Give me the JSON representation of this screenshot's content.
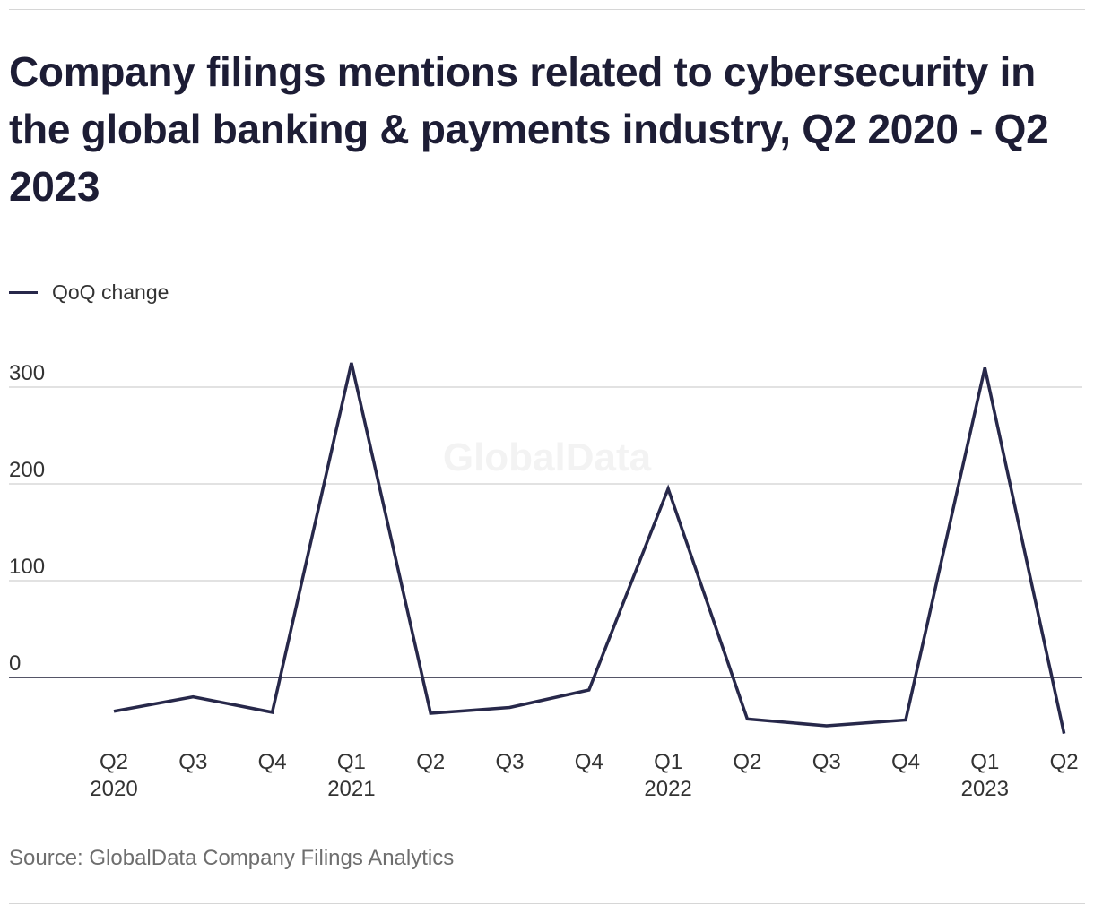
{
  "header": {
    "title": "Company filings mentions related to cybersecurity in the global banking & payments industry, Q2 2020 - Q2 2023"
  },
  "legend": {
    "label": "QoQ change"
  },
  "watermark": "GlobalData",
  "footer": {
    "source": "Source: GlobalData Company Filings Analytics"
  },
  "colors": {
    "line": "#27284a",
    "grid": "#d9d9d9",
    "zero_line": "#1d1d35"
  },
  "chart_data": {
    "type": "line",
    "title": "Company filings mentions related to cybersecurity in the global banking & payments industry, Q2 2020 - Q2 2023",
    "xlabel": "",
    "ylabel": "",
    "ylim": [
      -70,
      330
    ],
    "yticks": [
      0,
      100,
      200,
      300
    ],
    "grid": true,
    "legend_position": "top-left",
    "categories": [
      "Q2 2020",
      "Q3 2020",
      "Q4 2020",
      "Q1 2021",
      "Q2 2021",
      "Q3 2021",
      "Q4 2021",
      "Q1 2022",
      "Q2 2022",
      "Q3 2022",
      "Q4 2022",
      "Q1 2023",
      "Q2 2023"
    ],
    "tick_labels": [
      {
        "top": "Q2",
        "bottom": "2020"
      },
      {
        "top": "Q3",
        "bottom": ""
      },
      {
        "top": "Q4",
        "bottom": ""
      },
      {
        "top": "Q1",
        "bottom": "2021"
      },
      {
        "top": "Q2",
        "bottom": ""
      },
      {
        "top": "Q3",
        "bottom": ""
      },
      {
        "top": "Q4",
        "bottom": ""
      },
      {
        "top": "Q1",
        "bottom": "2022"
      },
      {
        "top": "Q2",
        "bottom": ""
      },
      {
        "top": "Q3",
        "bottom": ""
      },
      {
        "top": "Q4",
        "bottom": ""
      },
      {
        "top": "Q1",
        "bottom": "2023"
      },
      {
        "top": "Q2",
        "bottom": ""
      }
    ],
    "series": [
      {
        "name": "QoQ change",
        "values": [
          -35,
          -20,
          -36,
          325,
          -37,
          -31,
          -13,
          195,
          -43,
          -50,
          -44,
          320,
          -58
        ]
      }
    ]
  }
}
